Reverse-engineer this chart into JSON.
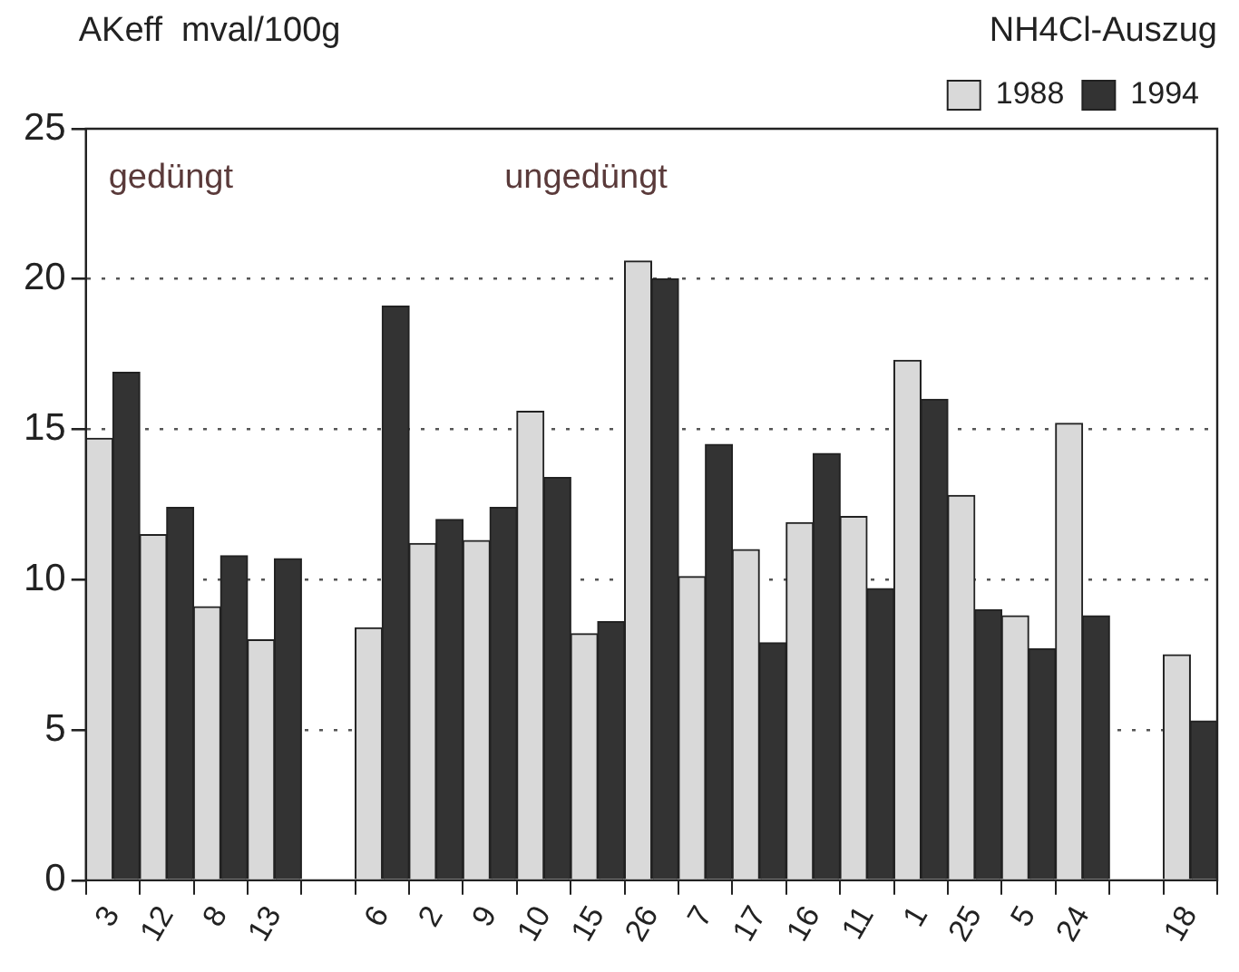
{
  "chart_data": {
    "type": "bar",
    "title": "NH4Cl-Auszug",
    "ylabel": "AKeff  mval/100g",
    "annotations": [
      "gedüngt",
      "ungedüngt"
    ],
    "categories": [
      "3",
      "12",
      "8",
      "13",
      null,
      "6",
      "2",
      "9",
      "10",
      "15",
      "26",
      "7",
      "17",
      "16",
      "11",
      "1",
      "25",
      "5",
      "24",
      null,
      "18"
    ],
    "series": [
      {
        "name": "1988",
        "color": "#d9d9d9",
        "values": [
          14.7,
          11.5,
          9.1,
          8.0,
          null,
          8.4,
          11.2,
          11.3,
          15.6,
          8.2,
          20.6,
          10.1,
          11.0,
          11.9,
          12.1,
          17.3,
          12.8,
          8.8,
          15.2,
          null,
          7.5
        ]
      },
      {
        "name": "1994",
        "color": "#333333",
        "values": [
          16.9,
          12.4,
          10.8,
          10.7,
          null,
          19.1,
          12.0,
          12.4,
          13.4,
          8.6,
          20.0,
          14.5,
          7.9,
          14.2,
          9.7,
          16.0,
          9.0,
          7.7,
          8.8,
          null,
          5.3
        ]
      }
    ],
    "ylim": [
      0,
      25
    ],
    "yticks": [
      0,
      5,
      10,
      15,
      20,
      25
    ],
    "grid": "y",
    "legend": "top right"
  }
}
